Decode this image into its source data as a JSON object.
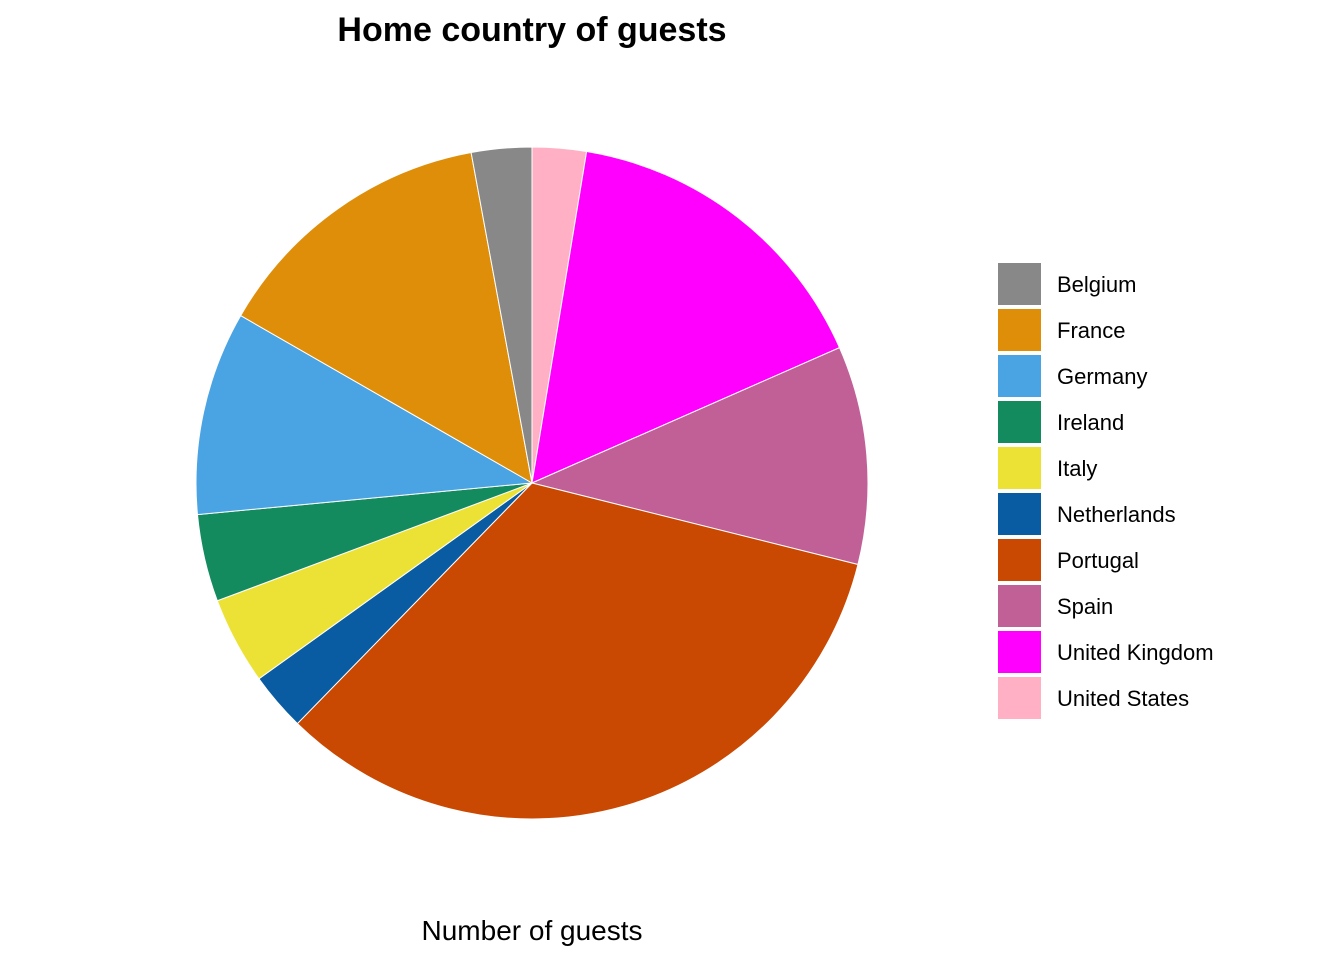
{
  "chart_data": {
    "type": "pie",
    "title": "Home country of guests",
    "xlabel": "Number of guests",
    "ylabel": "",
    "start_angle": "12 o'clock",
    "direction": "clockwise",
    "legend_position": "right",
    "slices": [
      {
        "label": "United States",
        "value": 2.6,
        "color": "#ffb0c4"
      },
      {
        "label": "United Kingdom",
        "value": 15.8,
        "color": "#ff00ff"
      },
      {
        "label": "Spain",
        "value": 10.5,
        "color": "#c06097"
      },
      {
        "label": "Portugal",
        "value": 33.4,
        "color": "#c94802"
      },
      {
        "label": "Netherlands",
        "value": 2.8,
        "color": "#0a5ca2"
      },
      {
        "label": "Italy",
        "value": 4.2,
        "color": "#ece236"
      },
      {
        "label": "Ireland",
        "value": 4.2,
        "color": "#138b5e"
      },
      {
        "label": "Germany",
        "value": 9.8,
        "color": "#4aa3e2"
      },
      {
        "label": "France",
        "value": 13.8,
        "color": "#df8e09"
      },
      {
        "label": "Belgium",
        "value": 2.9,
        "color": "#888888"
      }
    ],
    "legend": [
      {
        "label": "Belgium",
        "color": "#888888"
      },
      {
        "label": "France",
        "color": "#df8e09"
      },
      {
        "label": "Germany",
        "color": "#4aa3e2"
      },
      {
        "label": "Ireland",
        "color": "#138b5e"
      },
      {
        "label": "Italy",
        "color": "#ece236"
      },
      {
        "label": "Netherlands",
        "color": "#0a5ca2"
      },
      {
        "label": "Portugal",
        "color": "#c94802"
      },
      {
        "label": "Spain",
        "color": "#c06097"
      },
      {
        "label": "United Kingdom",
        "color": "#ff00ff"
      },
      {
        "label": "United States",
        "color": "#ffb0c4"
      }
    ]
  }
}
